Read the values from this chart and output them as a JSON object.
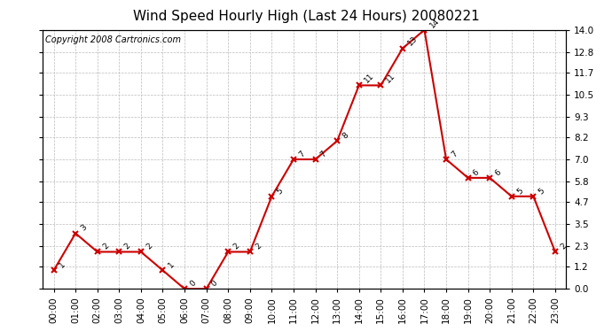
{
  "title": "Wind Speed Hourly High (Last 24 Hours) 20080221",
  "copyright": "Copyright 2008 Cartronics.com",
  "hours": [
    "00:00",
    "01:00",
    "02:00",
    "03:00",
    "04:00",
    "05:00",
    "06:00",
    "07:00",
    "08:00",
    "09:00",
    "10:00",
    "11:00",
    "12:00",
    "13:00",
    "14:00",
    "15:00",
    "16:00",
    "17:00",
    "18:00",
    "19:00",
    "20:00",
    "21:00",
    "22:00",
    "23:00"
  ],
  "values": [
    1,
    3,
    2,
    2,
    2,
    1,
    0,
    0,
    2,
    2,
    5,
    7,
    7,
    8,
    11,
    11,
    13,
    14,
    7,
    6,
    6,
    5,
    5,
    2
  ],
  "line_color": "#cc0000",
  "marker_color": "#cc0000",
  "bg_color": "#ffffff",
  "grid_color": "#bbbbbb",
  "ylim": [
    0,
    14.0
  ],
  "yticks": [
    0.0,
    1.2,
    2.3,
    3.5,
    4.7,
    5.8,
    7.0,
    8.2,
    9.3,
    10.5,
    11.7,
    12.8,
    14.0
  ],
  "title_fontsize": 11,
  "copyright_fontsize": 7,
  "label_fontsize": 6.5,
  "tick_fontsize": 7.5
}
